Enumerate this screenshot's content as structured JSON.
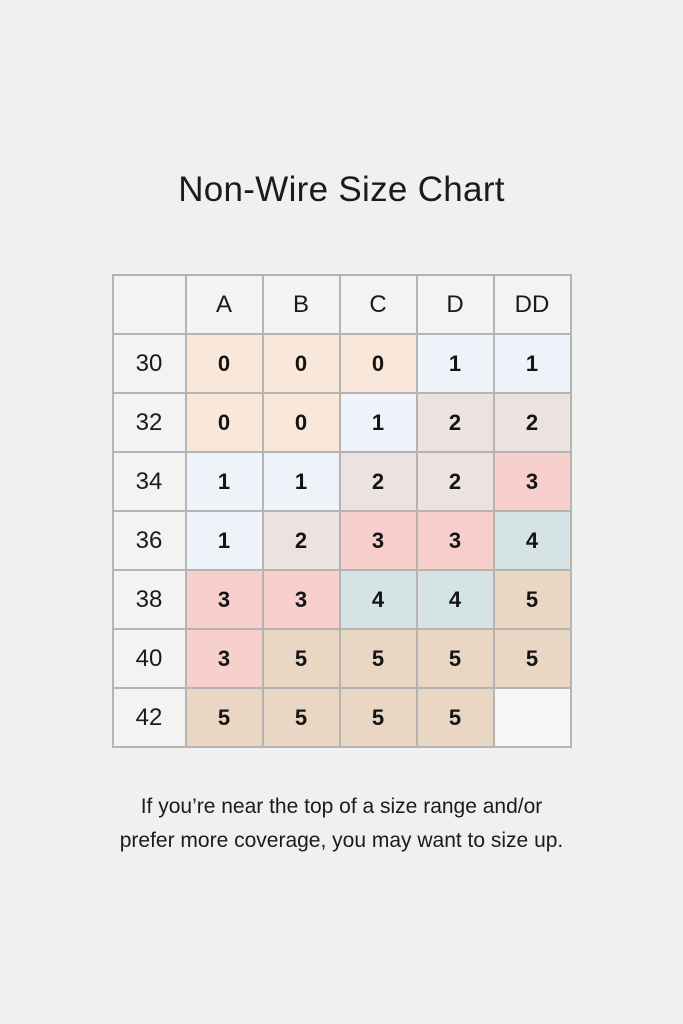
{
  "title": "Non-Wire Size Chart",
  "footnote": {
    "line1": "If you’re near the top of a size range and/or",
    "line2": "prefer more coverage, you may want to size up."
  },
  "chart_data": {
    "type": "table",
    "title": "Non-Wire Size Chart",
    "column_headers": [
      "",
      "A",
      "B",
      "C",
      "D",
      "DD"
    ],
    "row_headers": [
      "30",
      "32",
      "34",
      "36",
      "38",
      "40",
      "42"
    ],
    "cells": [
      [
        "0",
        "0",
        "0",
        "1",
        "1"
      ],
      [
        "0",
        "0",
        "1",
        "2",
        "2"
      ],
      [
        "1",
        "1",
        "2",
        "2",
        "3"
      ],
      [
        "1",
        "2",
        "3",
        "3",
        "4"
      ],
      [
        "3",
        "3",
        "4",
        "4",
        "5"
      ],
      [
        "3",
        "5",
        "5",
        "5",
        "5"
      ],
      [
        "5",
        "5",
        "5",
        "5",
        ""
      ]
    ],
    "value_colors": {
      "0": "#f9e8d9",
      "1": "#eef2f9",
      "2": "#ece3e1",
      "3": "#f7d0cd",
      "4": "#d5e3e5",
      "5": "#e9d6c3",
      "": "#f6f6f5"
    },
    "header_bg": "#f3f3f2",
    "border_color": "#b5b4b2",
    "page_bg": "#f0f0ef",
    "text_color": "#1b1b1b"
  }
}
